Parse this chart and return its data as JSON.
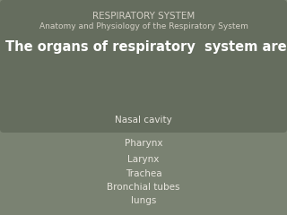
{
  "bg_color": "#7a8272",
  "header_box_color": "#656d5e",
  "title1": "RESPIRATORY SYSTEM",
  "title2": "Anatomy and Physiology of the Respiratory System",
  "subtitle": "The organs of respiratory  system are the",
  "items": [
    "Nasal cavity",
    "Pharynx",
    "Larynx",
    "Trachea",
    "Bronchial tubes",
    "lungs"
  ],
  "title_color": "#d4d0c6",
  "subtitle_color": "#ffffff",
  "item_color": "#e8e5de",
  "title1_fontsize": 7.5,
  "title2_fontsize": 6.5,
  "subtitle_fontsize": 10.5,
  "item_fontsize": 7.5,
  "figsize": [
    3.2,
    2.4
  ],
  "dpi": 100
}
